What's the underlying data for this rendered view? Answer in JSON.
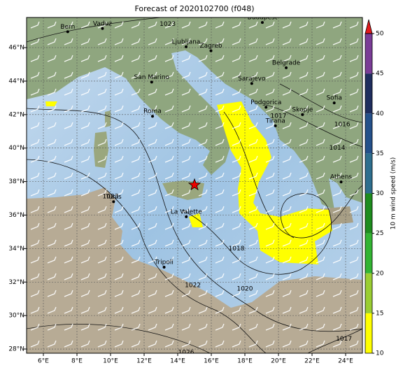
{
  "title": "Forecast of 2020102700 (f048)",
  "map": {
    "lon_range": [
      5,
      25
    ],
    "lat_range": [
      27.75,
      47.8
    ],
    "xticks": [
      {
        "value": 6,
        "label": "6°E"
      },
      {
        "value": 8,
        "label": "8°E"
      },
      {
        "value": 10,
        "label": "10°E"
      },
      {
        "value": 12,
        "label": "12°E"
      },
      {
        "value": 14,
        "label": "14°E"
      },
      {
        "value": 16,
        "label": "16°E"
      },
      {
        "value": 18,
        "label": "18°E"
      },
      {
        "value": 20,
        "label": "20°E"
      },
      {
        "value": 22,
        "label": "22°E"
      },
      {
        "value": 24,
        "label": "24°E"
      }
    ],
    "yticks": [
      {
        "value": 28,
        "label": "28°N"
      },
      {
        "value": 30,
        "label": "30°N"
      },
      {
        "value": 32,
        "label": "32°N"
      },
      {
        "value": 34,
        "label": "34°N"
      },
      {
        "value": 36,
        "label": "36°N"
      },
      {
        "value": 38,
        "label": "38°N"
      },
      {
        "value": 40,
        "label": "40°N"
      },
      {
        "value": 42,
        "label": "42°N"
      },
      {
        "value": 44,
        "label": "44°N"
      },
      {
        "value": 46,
        "label": "46°N"
      }
    ],
    "cities": [
      {
        "name": "Bern",
        "lon": 7.45,
        "lat": 46.95
      },
      {
        "name": "Vaduz",
        "lon": 9.52,
        "lat": 47.14
      },
      {
        "name": "Budapest",
        "lon": 19.04,
        "lat": 47.5
      },
      {
        "name": "Ljubljana",
        "lon": 14.5,
        "lat": 46.05
      },
      {
        "name": "Zagreb",
        "lon": 15.98,
        "lat": 45.81
      },
      {
        "name": "Belgrade",
        "lon": 20.46,
        "lat": 44.8
      },
      {
        "name": "San Marino",
        "lon": 12.45,
        "lat": 43.94
      },
      {
        "name": "Sarajevo",
        "lon": 18.41,
        "lat": 43.86
      },
      {
        "name": "Roma",
        "lon": 12.5,
        "lat": 41.9
      },
      {
        "name": "Podgorica",
        "lon": 19.26,
        "lat": 42.44
      },
      {
        "name": "Skopje",
        "lon": 21.43,
        "lat": 42.0
      },
      {
        "name": "Sofia",
        "lon": 23.32,
        "lat": 42.7
      },
      {
        "name": "Tirana",
        "lon": 19.82,
        "lat": 41.33
      },
      {
        "name": "Athens",
        "lon": 23.73,
        "lat": 37.98
      },
      {
        "name": "Tunis",
        "lon": 10.18,
        "lat": 36.8
      },
      {
        "name": "La Valette",
        "lon": 14.51,
        "lat": 35.9
      },
      {
        "name": "Tripoli",
        "lon": 13.19,
        "lat": 32.89
      }
    ],
    "star": {
      "lon": 15.0,
      "lat": 37.8
    },
    "contour_labels": [
      {
        "text": "1022",
        "lon": 14.9,
        "lat": 31.8
      },
      {
        "text": "1020",
        "lon": 18.0,
        "lat": 31.6
      },
      {
        "text": "1018",
        "lon": 17.5,
        "lat": 34.0
      },
      {
        "text": "1023",
        "lon": 10.0,
        "lat": 37.1
      },
      {
        "text": "1017",
        "lon": 23.9,
        "lat": 28.6
      },
      {
        "text": "1016",
        "lon": 23.8,
        "lat": 41.4
      },
      {
        "text": "1014",
        "lon": 23.5,
        "lat": 40.0
      },
      {
        "text": "1017",
        "lon": 20.0,
        "lat": 41.9
      },
      {
        "text": "1023",
        "lon": 13.4,
        "lat": 47.4
      },
      {
        "text": "1026",
        "lon": 14.5,
        "lat": 27.8
      }
    ]
  },
  "colorbar": {
    "label": "10 m wind speed (m/s)",
    "lim": [
      10,
      50
    ],
    "ticks": [
      10,
      15,
      20,
      25,
      30,
      35,
      40,
      45,
      50
    ],
    "colors": [
      "#ffff00",
      "#9acd32",
      "#32b432",
      "#1e8c1e",
      "#2e6e8e",
      "#24508a",
      "#1f2d5e",
      "#7a3c96"
    ],
    "extend_color": "#e31a1c"
  }
}
